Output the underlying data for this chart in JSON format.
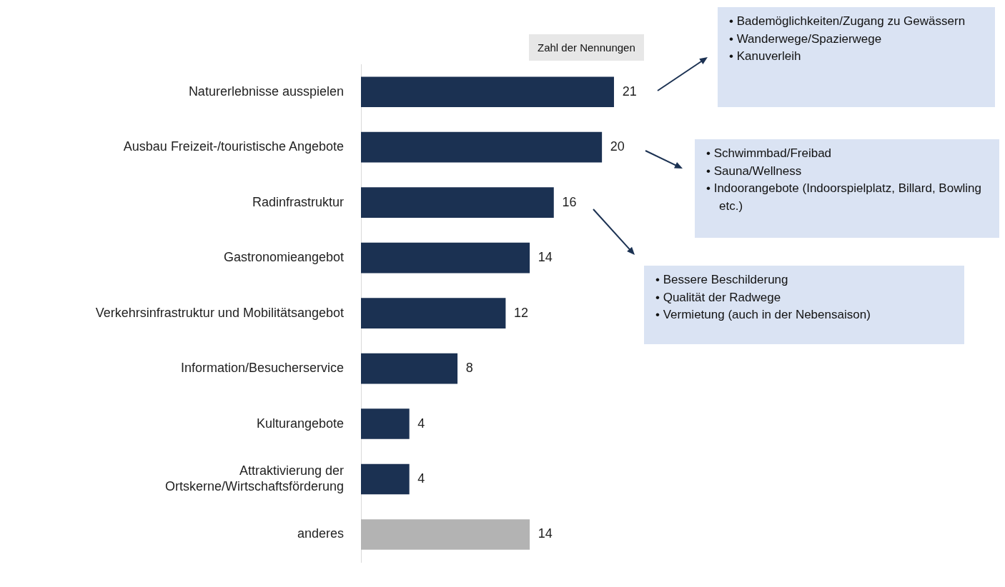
{
  "chart_data": {
    "type": "bar",
    "orientation": "horizontal",
    "categories": [
      "Naturerlebnisse ausspielen",
      "Ausbau Freizeit-/touristische Angebote",
      "Radinfrastruktur",
      "Gastronomieangebot",
      "Verkehrsinfrastruktur und Mobilitätsangebot",
      "Information/Besucherservice",
      "Kulturangebote",
      "Attraktivierung der\nOrtskerne/Wirtschaftsförderung",
      "anderes"
    ],
    "values": [
      21,
      20,
      16,
      14,
      12,
      8,
      4,
      4,
      14
    ],
    "colors": [
      "#1b3152",
      "#1b3152",
      "#1b3152",
      "#1b3152",
      "#1b3152",
      "#1b3152",
      "#1b3152",
      "#1b3152",
      "#b3b3b3"
    ],
    "data_labels": true,
    "legend": false,
    "annotations": [
      "Zahl der Nennungen",
      "• Bademöglichkeiten/Zugang zu Gewässern\n• Wanderwege/Spazierwege\n• Kanuverleih",
      "• Schwimmbad/Freibad\n• Sauna/Wellness\n• Indoorangebote (Indoorspielplatz, Billard, Bowling etc.)",
      "• Bessere Beschilderung\n• Qualität der Radwege\n• Vermietung (auch in der Nebensaison)"
    ]
  }
}
